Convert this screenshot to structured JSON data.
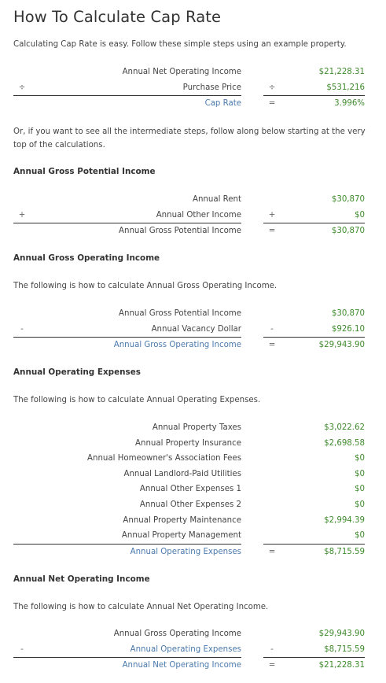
{
  "title": "How To Calculate Cap Rate",
  "intro": "Calculating Cap Rate is easy. Follow these simple steps using an example property.",
  "summary": {
    "rows": [
      {
        "op": "",
        "label": "Annual Net Operating Income",
        "value": "$21,228.31",
        "blue": false
      },
      {
        "op": "÷",
        "label": "Purchase Price",
        "value": "$531,216",
        "blue": false
      }
    ],
    "total": {
      "op": "=",
      "label": "Cap Rate",
      "value": "3.996%"
    }
  },
  "intermediate_text": "Or, if you want to see all the intermediate steps, follow along below starting at the very top of the calculations.",
  "sections": [
    {
      "heading": "Annual Gross Potential Income",
      "description": "",
      "rows": [
        {
          "op": "",
          "label": "Annual Rent",
          "value": "$30,870",
          "blue": false
        },
        {
          "op": "+",
          "label": "Annual Other Income",
          "value": "$0",
          "blue": false
        }
      ],
      "total": {
        "op": "=",
        "label": "Annual Gross Potential Income",
        "value": "$30,870",
        "blue": false
      }
    },
    {
      "heading": "Annual Gross Operating Income",
      "description": "The following is how to calculate Annual Gross Operating Income.",
      "rows": [
        {
          "op": "",
          "label": "Annual Gross Potential Income",
          "value": "$30,870",
          "blue": false
        },
        {
          "op": "-",
          "label": "Annual Vacancy Dollar",
          "value": "$926.10",
          "blue": false
        }
      ],
      "total": {
        "op": "=",
        "label": "Annual Gross Operating Income",
        "value": "$29,943.90",
        "blue": true
      }
    },
    {
      "heading": "Annual Operating Expenses",
      "description": "The following is how to calculate Annual Operating Expenses.",
      "rows": [
        {
          "op": "",
          "label": "Annual Property Taxes",
          "value": "$3,022.62",
          "blue": false
        },
        {
          "op": "",
          "label": "Annual Property Insurance",
          "value": "$2,698.58",
          "blue": false
        },
        {
          "op": "",
          "label": "Annual Homeowner's Association Fees",
          "value": "$0",
          "blue": false
        },
        {
          "op": "",
          "label": "Annual Landlord-Paid Utilities",
          "value": "$0",
          "blue": false
        },
        {
          "op": "",
          "label": "Annual Other Expenses 1",
          "value": "$0",
          "blue": false
        },
        {
          "op": "",
          "label": "Annual Other Expenses 2",
          "value": "$0",
          "blue": false
        },
        {
          "op": "",
          "label": "Annual Property Maintenance",
          "value": "$2,994.39",
          "blue": false
        },
        {
          "op": "",
          "label": "Annual Property Management",
          "value": "$0",
          "blue": false
        }
      ],
      "total": {
        "op": "=",
        "label": "Annual Operating Expenses",
        "value": "$8,715.59",
        "blue": true
      }
    },
    {
      "heading": "Annual Net Operating Income",
      "description": "The following is how to calculate Annual Net Operating Income.",
      "rows": [
        {
          "op": "",
          "label": "Annual Gross Operating Income",
          "value": "$29,943.90",
          "blue": false
        },
        {
          "op": "-",
          "label": "Annual Operating Expenses",
          "value": "$8,715.59",
          "blue": true
        }
      ],
      "total": {
        "op": "=",
        "label": "Annual Net Operating Income",
        "value": "$21,228.31",
        "blue": true
      }
    }
  ],
  "colors": {
    "value_green": "#3f8a2d",
    "link_blue": "#4a79ac",
    "text": "#444444"
  }
}
